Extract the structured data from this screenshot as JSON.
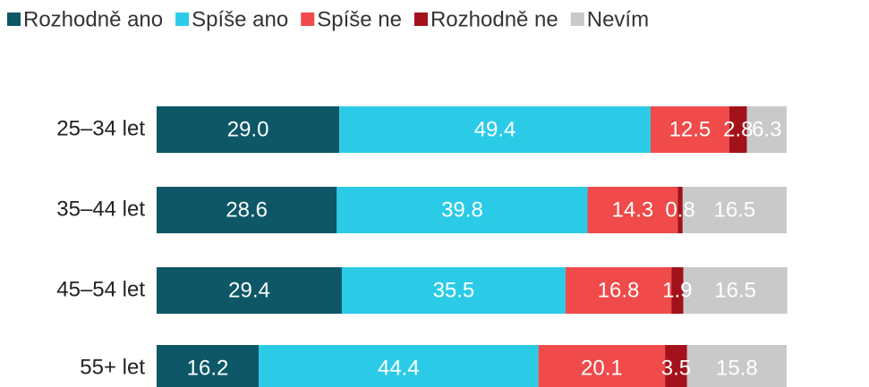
{
  "chart_data": {
    "type": "stacked-bar-horizontal",
    "categories": [
      "25–34 let",
      "35–44 let",
      "45–54 let",
      "55+ let"
    ],
    "xlim": [
      0,
      100
    ],
    "series": [
      {
        "name": "Rozhodně ano",
        "color": "#0d5766",
        "values": [
          29.0,
          28.6,
          29.4,
          16.2
        ],
        "value_labels": [
          "29.0",
          "28.6",
          "29.4",
          "16.2"
        ]
      },
      {
        "name": "Spíše ano",
        "color": "#2bcbe8",
        "values": [
          49.4,
          39.8,
          35.5,
          44.4
        ],
        "value_labels": [
          "49.4",
          "39.8",
          "35.5",
          "44.4"
        ]
      },
      {
        "name": "Spíše ne",
        "color": "#f04a4a",
        "values": [
          12.5,
          14.3,
          16.8,
          20.1
        ],
        "value_labels": [
          "12.5",
          "14.3",
          "16.8",
          "20.1"
        ]
      },
      {
        "name": "Rozhodně ne",
        "color": "#a3121a",
        "values": [
          2.8,
          0.8,
          1.9,
          3.5
        ],
        "value_labels": [
          "2.8",
          "0.8",
          "1.9",
          "3.5"
        ]
      },
      {
        "name": "Nevím",
        "color": "#c9c9c9",
        "values": [
          6.3,
          16.5,
          16.5,
          15.8
        ],
        "value_labels": [
          "6.3",
          "16.5",
          "16.5",
          "15.8"
        ]
      }
    ]
  }
}
